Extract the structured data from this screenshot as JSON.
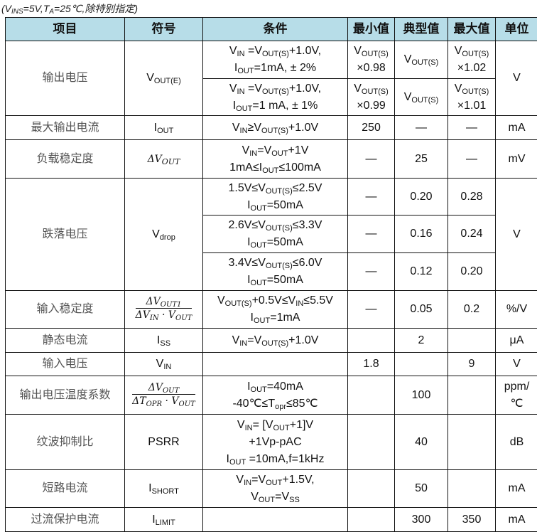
{
  "caption": "(V_{INS}=5V,T_{A}=25℃,除特别指定)",
  "header": [
    "项目",
    "符号",
    "条件",
    "最小值",
    "典型值",
    "最大值",
    "单位"
  ],
  "header_color": "#b7dde8",
  "rows": [
    {
      "h": 53,
      "cells": [
        {
          "t": "输出电压",
          "rs": 2,
          "item": true
        },
        {
          "t": "V_{OUT(E)}",
          "rs": 2
        },
        {
          "t": "V_{IN} =V_{OUT(S)}+1.0V,\nI_{OUT}=1mA, ± 2%"
        },
        {
          "t": "V_{OUT(S)}\n×0.98"
        },
        {
          "t": "V_{OUT(S)}"
        },
        {
          "t": "V_{OUT(S)}\n×1.02"
        },
        {
          "t": "V",
          "rs": 2
        }
      ]
    },
    {
      "h": 52,
      "cells": [
        {
          "t": "V_{IN} =V_{OUT(S)}+1.0V,\nI_{OUT}=1 mA, ± 1%"
        },
        {
          "t": "V_{OUT(S)}\n×0.99"
        },
        {
          "t": "V_{OUT(S)}"
        },
        {
          "t": "V_{OUT(S)}\n×1.01"
        }
      ]
    },
    {
      "h": 34,
      "cells": [
        {
          "t": "最大输出电流",
          "item": true
        },
        {
          "t": "I_{OUT}"
        },
        {
          "t": "V_{IN}≥V_{OUT(S)}+1.0V"
        },
        {
          "t": "250"
        },
        {
          "t": "—"
        },
        {
          "t": "—"
        },
        {
          "t": "mA"
        }
      ]
    },
    {
      "h": 54,
      "cells": [
        {
          "t": "负载稳定度",
          "item": true
        },
        {
          "t": "ΔV_{OUT}",
          "math": true
        },
        {
          "t": "V_{IN}=V_{OUT}+1V\n1mA≤I_{OUT}≤100mA"
        },
        {
          "t": "—"
        },
        {
          "t": "25"
        },
        {
          "t": "—"
        },
        {
          "t": "mV"
        }
      ]
    },
    {
      "h": 52,
      "cells": [
        {
          "t": "跌落电压",
          "rs": 3,
          "item": true
        },
        {
          "t": "V_{drop}",
          "rs": 3
        },
        {
          "t": "1.5V≤V_{OUT(S)}≤2.5V\nI_{OUT}=50mA"
        },
        {
          "t": "—"
        },
        {
          "t": "0.20"
        },
        {
          "t": "0.28"
        },
        {
          "t": "V",
          "rs": 3
        }
      ]
    },
    {
      "h": 53,
      "cells": [
        {
          "t": "2.6V≤V_{OUT(S)}≤3.3V\nI_{OUT}=50mA"
        },
        {
          "t": "—"
        },
        {
          "t": "0.16"
        },
        {
          "t": "0.24"
        }
      ]
    },
    {
      "h": 53,
      "cells": [
        {
          "t": "3.4V≤V_{OUT(S)}≤6.0V\nI_{OUT}=50mA"
        },
        {
          "t": "—"
        },
        {
          "t": "0.12"
        },
        {
          "t": "0.20"
        }
      ]
    },
    {
      "h": 53,
      "cells": [
        {
          "t": "输入稳定度",
          "item": true
        },
        {
          "frac": [
            "ΔV_{OUT1}",
            "ΔV_{IN} · V_{OUT}"
          ]
        },
        {
          "t": "V_{OUT(S)}+0.5V≤V_{IN}≤5.5V\nI_{OUT}=1mA"
        },
        {
          "t": "—"
        },
        {
          "t": "0.05"
        },
        {
          "t": "0.2"
        },
        {
          "t": "%/V"
        }
      ]
    },
    {
      "h": 34,
      "cells": [
        {
          "t": "静态电流",
          "item": true
        },
        {
          "t": "I_{SS}"
        },
        {
          "t": "V_{IN}=V_{OUT(S)}+1.0V"
        },
        {
          "t": ""
        },
        {
          "t": "2"
        },
        {
          "t": ""
        },
        {
          "t": "μA"
        }
      ]
    },
    {
      "h": 33,
      "cells": [
        {
          "t": "输入电压",
          "item": true
        },
        {
          "t": "V_{IN}"
        },
        {
          "t": ""
        },
        {
          "t": "1.8"
        },
        {
          "t": ""
        },
        {
          "t": "9"
        },
        {
          "t": "V"
        }
      ]
    },
    {
      "h": 54,
      "cells": [
        {
          "t": "输出电压温度系数",
          "item": true
        },
        {
          "frac": [
            "ΔV_{OUT}",
            "ΔT_{OPR} · V_{OUT}"
          ]
        },
        {
          "t": "I_{OUT}=40mA\n-40℃≤T_{opr}≤85℃"
        },
        {
          "t": ""
        },
        {
          "t": "100"
        },
        {
          "t": ""
        },
        {
          "t": "ppm/\n℃"
        }
      ]
    },
    {
      "h": 78,
      "cells": [
        {
          "t": "纹波抑制比",
          "item": true
        },
        {
          "t": "PSRR"
        },
        {
          "t": "V_{IN}= [V_{OUT}+1]V\n+1Vp-pAC\nI_{OUT} =10mA,f=1kHz"
        },
        {
          "t": ""
        },
        {
          "t": "40"
        },
        {
          "t": ""
        },
        {
          "t": "dB"
        }
      ]
    },
    {
      "h": 53,
      "cells": [
        {
          "t": "短路电流",
          "item": true
        },
        {
          "t": "I_{SHORT}"
        },
        {
          "t": "V_{IN}=V_{OUT}+1.5V,\nV_{OUT}=V_{SS}"
        },
        {
          "t": ""
        },
        {
          "t": "50"
        },
        {
          "t": ""
        },
        {
          "t": "mA"
        }
      ]
    },
    {
      "h": 34,
      "cells": [
        {
          "t": "过流保护电流",
          "item": true
        },
        {
          "t": "I_{LIMIT}"
        },
        {
          "t": ""
        },
        {
          "t": ""
        },
        {
          "t": "300"
        },
        {
          "t": "350"
        },
        {
          "t": "mA"
        }
      ]
    }
  ]
}
